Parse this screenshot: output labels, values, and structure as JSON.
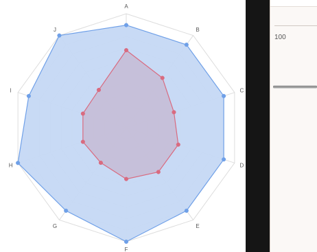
{
  "chart_data": {
    "type": "radar",
    "axes": [
      "A",
      "B",
      "C",
      "D",
      "E",
      "F",
      "G",
      "H",
      "I",
      "J"
    ],
    "r_range": [
      0,
      100
    ],
    "rings": 10,
    "grid": true,
    "series": [
      {
        "values": [
          90,
          90,
          90,
          90,
          90,
          100,
          90,
          100,
          90,
          100
        ],
        "color": "#6fa0e8",
        "fill": "#c5d8f4"
      },
      {
        "values": [
          68,
          54,
          44,
          48,
          48,
          45,
          38,
          40,
          40,
          41
        ],
        "color": "#d96b80",
        "fill": "#c6b7d0"
      }
    ]
  },
  "side_panel": {
    "tick_label": "100"
  }
}
